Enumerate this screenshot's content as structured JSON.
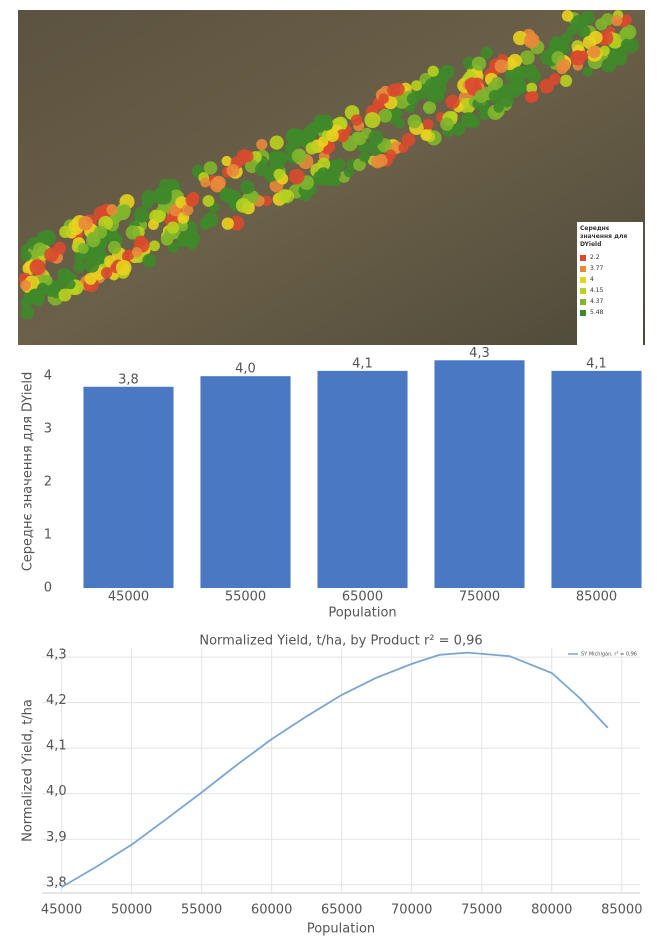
{
  "map": {
    "legend": {
      "title": "Середнє значення для DYield",
      "items": [
        {
          "label": 2.2,
          "color": "#d94a2e"
        },
        {
          "label": 3.77,
          "color": "#e8893a"
        },
        {
          "label": 4,
          "color": "#e8d21e"
        },
        {
          "label": 4.15,
          "color": "#b9d21f"
        },
        {
          "label": 4.37,
          "color": "#7fb52c"
        },
        {
          "label": 5.48,
          "color": "#3f8a2a"
        }
      ]
    }
  },
  "chart_data": [
    {
      "type": "bar",
      "categories": [
        "45000",
        "55000",
        "65000",
        "75000",
        "85000"
      ],
      "values": [
        3.8,
        4.0,
        4.1,
        4.3,
        4.1
      ],
      "value_labels": [
        "3,8",
        "4,0",
        "4,1",
        "4,3",
        "4,1"
      ],
      "color": "#4a78c2",
      "ylim": [
        0,
        4.4
      ],
      "yticks": [
        0,
        1,
        2,
        3,
        4
      ],
      "y_label": "Середнє значення для DYield",
      "x_label": "Population",
      "grid": false
    },
    {
      "type": "line",
      "title": "Normalized Yield, t/ha, by Product r² = 0,96",
      "x": [
        45000,
        47500,
        50000,
        52500,
        55000,
        57500,
        60000,
        62500,
        65000,
        67500,
        70000,
        72000,
        74000,
        77000,
        80000,
        82000,
        84000
      ],
      "series": [
        {
          "name": "SY Michigan, r² = 0,96",
          "color": "#7aa6d4",
          "values": [
            3.795,
            3.84,
            3.888,
            3.945,
            4.003,
            4.063,
            4.12,
            4.17,
            4.217,
            4.255,
            4.285,
            4.305,
            4.31,
            4.302,
            4.265,
            4.21,
            4.145
          ]
        }
      ],
      "xlim": [
        43600,
        86300
      ],
      "ylim": [
        3.782,
        4.32
      ],
      "xticks": [
        45000,
        50000,
        55000,
        60000,
        65000,
        70000,
        75000,
        80000,
        85000
      ],
      "yticks": [
        {
          "value": 3.8,
          "label": "3,8"
        },
        {
          "value": 3.9,
          "label": "3,9"
        },
        {
          "value": 4.0,
          "label": "4,0"
        },
        {
          "value": 4.1,
          "label": "4,1"
        },
        {
          "value": 4.2,
          "label": "4,2"
        },
        {
          "value": 4.3,
          "label": "4,3"
        }
      ],
      "y_label": "Normalized Yield, t/ha",
      "x_label": "Population",
      "grid": true,
      "legend": "top-right"
    }
  ]
}
